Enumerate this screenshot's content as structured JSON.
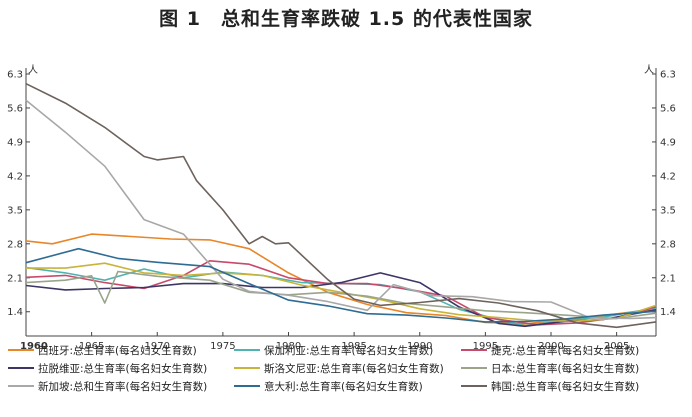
{
  "title": "图 1　总和生育率跌破 1.5 的代表性国家",
  "chart_data": {
    "type": "line",
    "title": "图 1　总和生育率跌破 1.5 的代表性国家",
    "y_unit": "人",
    "xlim": [
      1960,
      2008
    ],
    "ylim": [
      0.9,
      6.3
    ],
    "x_ticks": [
      "1960",
      "1965",
      "1970",
      "1975",
      "1980",
      "1985",
      "1990",
      "1995",
      "2000",
      "2005"
    ],
    "y_ticks": [
      "6.3",
      "5.6",
      "4.9",
      "4.2",
      "3.5",
      "2.8",
      "2.1",
      "1.4"
    ],
    "legend_position": "bottom",
    "series": [
      {
        "name": "西班牙:总生育率(每名妇女生育数)",
        "color": "#e8862a",
        "x": [
          1960,
          1962,
          1965,
          1968,
          1971,
          1974,
          1977,
          1980,
          1983,
          1986,
          1989,
          1992,
          1995,
          1998,
          2001,
          2004,
          2008
        ],
        "y": [
          2.86,
          2.8,
          3.0,
          2.95,
          2.9,
          2.88,
          2.7,
          2.2,
          1.8,
          1.55,
          1.38,
          1.32,
          1.18,
          1.15,
          1.24,
          1.32,
          1.46
        ]
      },
      {
        "name": "保加利亚:总生育率(每名妇女生育数)",
        "color": "#4fb3b0",
        "x": [
          1960,
          1963,
          1966,
          1969,
          1972,
          1975,
          1978,
          1981,
          1984,
          1987,
          1990,
          1993,
          1996,
          1998,
          2001,
          2004,
          2008
        ],
        "y": [
          2.31,
          2.2,
          2.05,
          2.28,
          2.1,
          2.22,
          2.15,
          2.0,
          1.98,
          1.96,
          1.81,
          1.45,
          1.24,
          1.11,
          1.22,
          1.29,
          1.48
        ]
      },
      {
        "name": "捷克:总生育率(每名妇女生育数)",
        "color": "#c84a6a",
        "x": [
          1960,
          1963,
          1966,
          1969,
          1972,
          1974,
          1977,
          1980,
          1983,
          1986,
          1989,
          1992,
          1995,
          1999,
          2002,
          2005,
          2008
        ],
        "y": [
          2.11,
          2.15,
          2.0,
          1.88,
          2.15,
          2.45,
          2.38,
          2.1,
          1.98,
          1.98,
          1.87,
          1.72,
          1.28,
          1.13,
          1.17,
          1.28,
          1.5
        ]
      },
      {
        "name": "拉脱维亚:总生育率(每名妇女生育数)",
        "color": "#3d3566",
        "x": [
          1960,
          1963,
          1966,
          1969,
          1972,
          1975,
          1978,
          1981,
          1984,
          1987,
          1990,
          1993,
          1996,
          1998,
          2001,
          2004,
          2008
        ],
        "y": [
          1.94,
          1.85,
          1.88,
          1.9,
          1.98,
          1.98,
          1.9,
          1.9,
          2.0,
          2.2,
          2.0,
          1.5,
          1.16,
          1.1,
          1.2,
          1.24,
          1.44
        ]
      },
      {
        "name": "斯洛文尼亚:总生育率(每名妇女生育数)",
        "color": "#c8b43a",
        "x": [
          1960,
          1963,
          1966,
          1969,
          1972,
          1975,
          1978,
          1981,
          1984,
          1987,
          1990,
          1993,
          1996,
          1999,
          2002,
          2005,
          2008
        ],
        "y": [
          2.3,
          2.3,
          2.4,
          2.2,
          2.15,
          2.2,
          2.15,
          1.95,
          1.8,
          1.65,
          1.46,
          1.34,
          1.28,
          1.21,
          1.21,
          1.26,
          1.53
        ]
      },
      {
        "name": "日本:总生育率(每名妇女生育数)",
        "color": "#9aa48a",
        "x": [
          1960,
          1963,
          1965,
          1966,
          1967,
          1970,
          1974,
          1977,
          1980,
          1983,
          1986,
          1989,
          1992,
          1995,
          1998,
          2001,
          2005,
          2008
        ],
        "y": [
          2.0,
          2.05,
          2.14,
          1.58,
          2.23,
          2.13,
          2.05,
          1.8,
          1.75,
          1.8,
          1.72,
          1.57,
          1.5,
          1.42,
          1.38,
          1.33,
          1.26,
          1.37
        ]
      },
      {
        "name": "新加坡:总和生育率(每名妇女生育数)",
        "color": "#a8a8a8",
        "x": [
          1960,
          1963,
          1966,
          1969,
          1972,
          1975,
          1977,
          1980,
          1983,
          1986,
          1988,
          1991,
          1994,
          1997,
          2000,
          2003,
          2006,
          2008
        ],
        "y": [
          5.76,
          5.1,
          4.4,
          3.3,
          3.0,
          2.07,
          1.82,
          1.74,
          1.61,
          1.43,
          1.96,
          1.73,
          1.71,
          1.61,
          1.6,
          1.27,
          1.26,
          1.28
        ]
      },
      {
        "name": "意大利:总生育率(每名妇女生育数)",
        "color": "#2f6c94",
        "x": [
          1960,
          1964,
          1967,
          1970,
          1974,
          1977,
          1980,
          1983,
          1986,
          1989,
          1992,
          1995,
          1998,
          2001,
          2004,
          2008
        ],
        "y": [
          2.41,
          2.7,
          2.5,
          2.42,
          2.33,
          1.98,
          1.64,
          1.52,
          1.36,
          1.33,
          1.27,
          1.19,
          1.2,
          1.25,
          1.33,
          1.41
        ]
      },
      {
        "name": "韩国:总生育率(每名妇女生育数)",
        "color": "#6e625c",
        "x": [
          1960,
          1963,
          1966,
          1969,
          1970,
          1972,
          1973,
          1975,
          1977,
          1978,
          1979,
          1980,
          1983,
          1985,
          1987,
          1990,
          1993,
          1996,
          1999,
          2002,
          2005,
          2008
        ],
        "y": [
          6.1,
          5.7,
          5.2,
          4.6,
          4.53,
          4.6,
          4.1,
          3.5,
          2.8,
          2.95,
          2.8,
          2.82,
          2.06,
          1.66,
          1.53,
          1.59,
          1.67,
          1.58,
          1.42,
          1.17,
          1.08,
          1.19
        ]
      }
    ]
  }
}
